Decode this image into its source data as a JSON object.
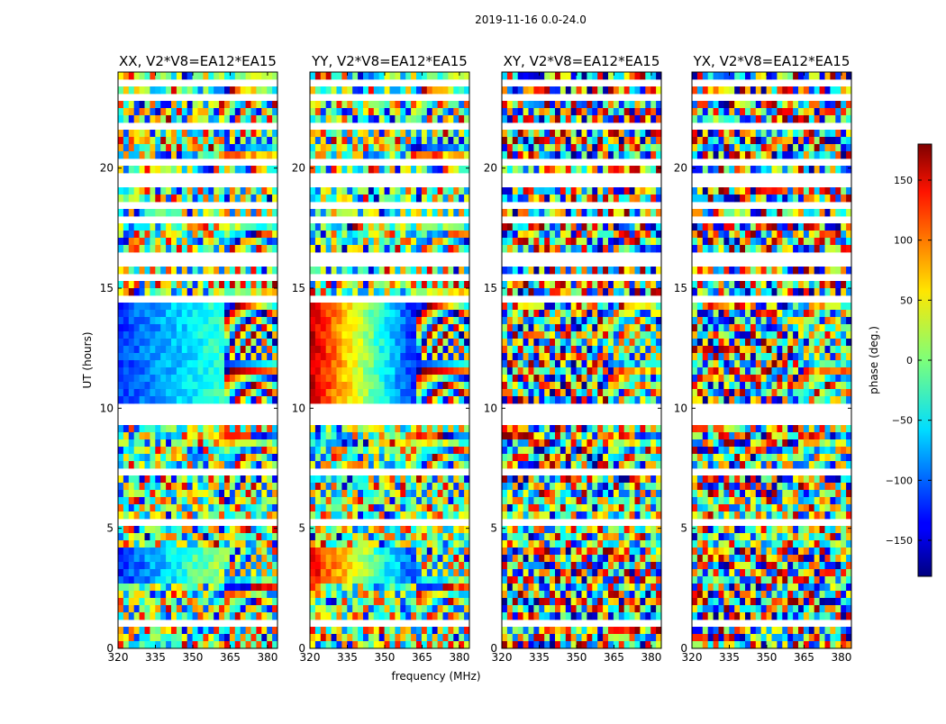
{
  "chart_data": {
    "type": "heatmap",
    "suptitle": "2019-11-16 0.0-24.0",
    "xlabel": "frequency (MHz)",
    "ylabel": "UT (hours)",
    "xlim": [
      320,
      384
    ],
    "ylim": [
      0,
      24
    ],
    "xticks": [
      320,
      335,
      350,
      365,
      380
    ],
    "yticks": [
      0,
      5,
      10,
      15,
      20
    ],
    "panels": [
      {
        "title": "XX, V2*V8=EA12*EA15",
        "pol": "XX"
      },
      {
        "title": "YY, V2*V8=EA12*EA15",
        "pol": "YY"
      },
      {
        "title": "XY, V2*V8=EA12*EA15",
        "pol": "XY"
      },
      {
        "title": "YX, V2*V8=EA12*EA15",
        "pol": "YX"
      }
    ],
    "colorbar": {
      "label": "phase (deg.)",
      "range": [
        -180,
        180
      ],
      "ticks": [
        -150,
        -100,
        -50,
        0,
        50,
        100,
        150
      ],
      "tick_labels": [
        "−150",
        "−100",
        "−50",
        "0",
        "50",
        "100",
        "150"
      ],
      "colormap": "jet"
    },
    "flagged_ut_hours": [
      1.0,
      1.2,
      2.7,
      4.2,
      5.3,
      6.3,
      7.4,
      9.5,
      9.7,
      10.0,
      14.6,
      15.4,
      16.0,
      16.3,
      17.8,
      18.5,
      19.3,
      19.7,
      20.2,
      21.8,
      23.0,
      23.6
    ]
  }
}
